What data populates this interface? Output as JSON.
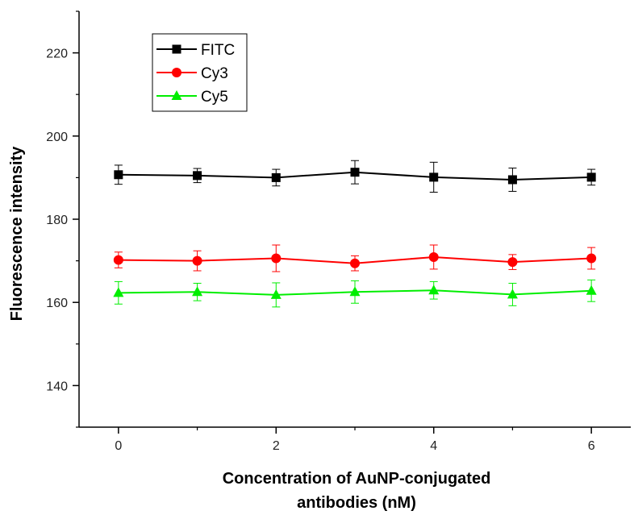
{
  "chart_data": {
    "type": "line",
    "title": "",
    "xlabel_lines": [
      "Concentration of AuNP-conjugated",
      "antibodies (nM)"
    ],
    "ylabel": "Fluorescence intensity",
    "x": [
      0,
      1,
      2,
      3,
      4,
      5,
      6
    ],
    "xlim": [
      -0.5,
      6.5
    ],
    "ylim": [
      130,
      230
    ],
    "xticks": [
      "0",
      "2",
      "4",
      "6"
    ],
    "xtick_values": [
      0,
      2,
      4,
      6
    ],
    "yticks": [
      "140",
      "160",
      "180",
      "200",
      "220"
    ],
    "ytick_values": [
      140,
      160,
      180,
      200,
      220
    ],
    "grid": false,
    "legend_position": "top-left",
    "series": [
      {
        "name": "FITC",
        "color": "#000000",
        "marker": "square",
        "values": [
          190.7,
          190.5,
          190.0,
          191.3,
          190.1,
          189.5,
          190.1
        ],
        "errors": [
          2.3,
          1.7,
          2.0,
          2.8,
          3.6,
          2.8,
          1.9
        ]
      },
      {
        "name": "Cy3",
        "color": "#ff0000",
        "marker": "circle",
        "values": [
          170.2,
          170.0,
          170.6,
          169.4,
          170.9,
          169.7,
          170.6
        ],
        "errors": [
          1.9,
          2.4,
          3.2,
          1.8,
          2.9,
          1.8,
          2.6
        ]
      },
      {
        "name": "Cy5",
        "color": "#00ee00",
        "marker": "triangle",
        "values": [
          162.3,
          162.5,
          161.8,
          162.5,
          162.9,
          161.9,
          162.8
        ],
        "errors": [
          2.7,
          2.1,
          2.9,
          2.7,
          2.1,
          2.7,
          2.6
        ]
      }
    ]
  }
}
